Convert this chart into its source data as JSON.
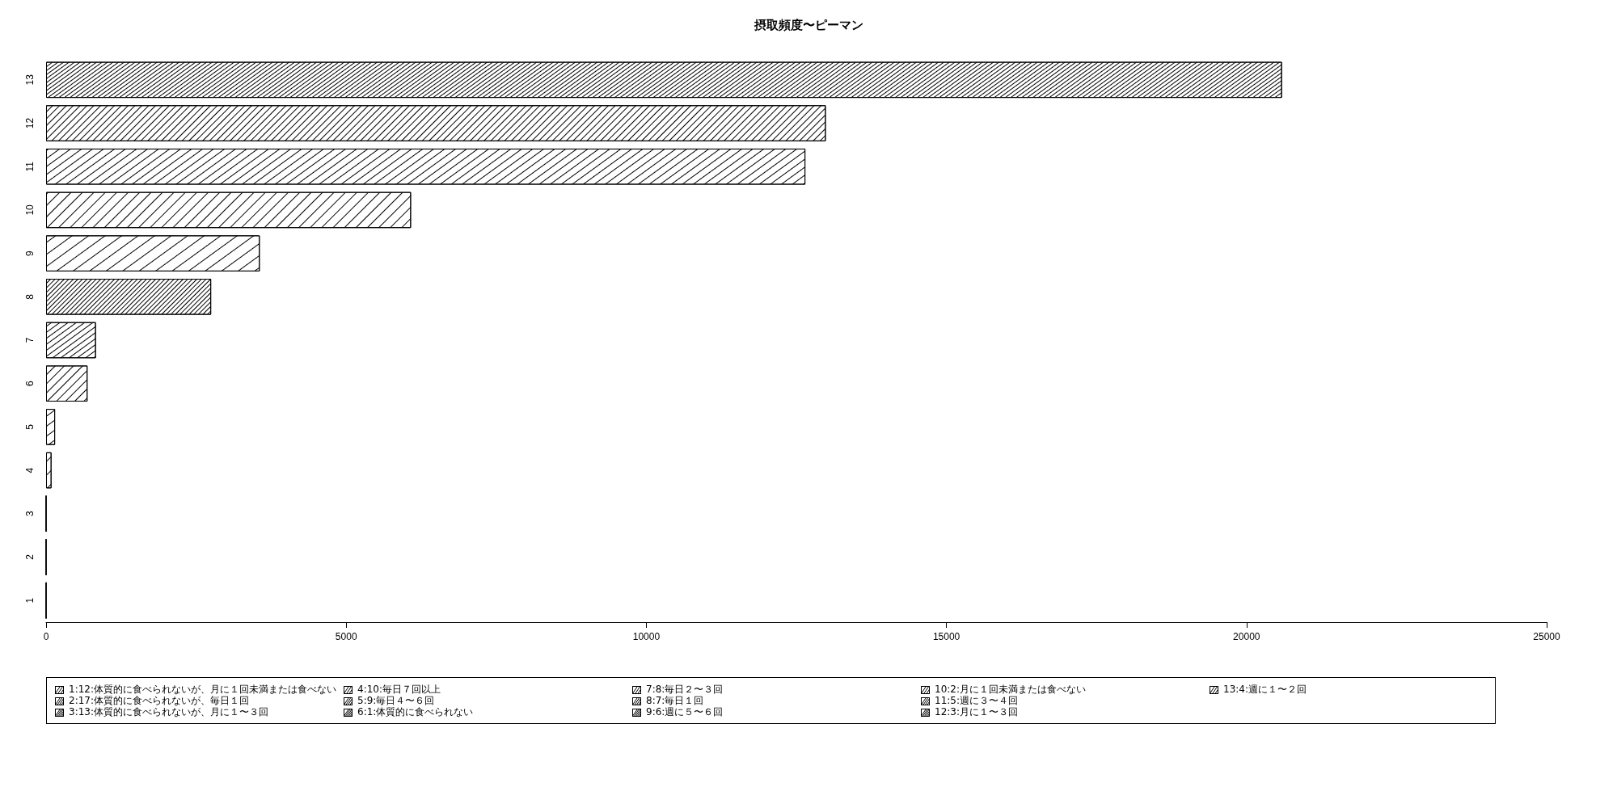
{
  "chart_data": {
    "type": "bar",
    "orientation": "horizontal",
    "title": "摂取頻度〜ピーマン",
    "categories": [
      "13",
      "12",
      "11",
      "10",
      "9",
      "8",
      "7",
      "6",
      "5",
      "4",
      "3",
      "2",
      "1"
    ],
    "values": [
      20590,
      12990,
      12650,
      6080,
      3560,
      2750,
      830,
      690,
      150,
      90,
      0,
      0,
      0
    ],
    "colors": [
      "#ffffff",
      "#ffffff",
      "#ffffff",
      "#ffffff",
      "#ffffff",
      "#ffffff",
      "#ffffff",
      "#ffffff",
      "#ffffff",
      "#ffffff",
      "#000000",
      "#000000",
      "#000000"
    ],
    "xlim": [
      0,
      25000
    ],
    "xticks": [
      0,
      5000,
      10000,
      15000,
      20000,
      25000
    ],
    "grid": false,
    "annotations": [
      "1:12:体質的に食べられないが、月に１回未満または食べない",
      "2:17:体質的に食べられないが、毎日１回",
      "3:13:体質的に食べられないが、月に１〜３回",
      "4:10:毎日７回以上",
      "5:9:毎日４〜６回",
      "6:1:体質的に食べられない",
      "7:8:毎日２〜３回",
      "8:7:毎日１回",
      "9:6:週に５〜６回",
      "10:2:月に１回未満または食べない",
      "11:5:週に３〜４回",
      "12:3:月に１〜３回",
      "13:4:週に１〜２回"
    ]
  }
}
